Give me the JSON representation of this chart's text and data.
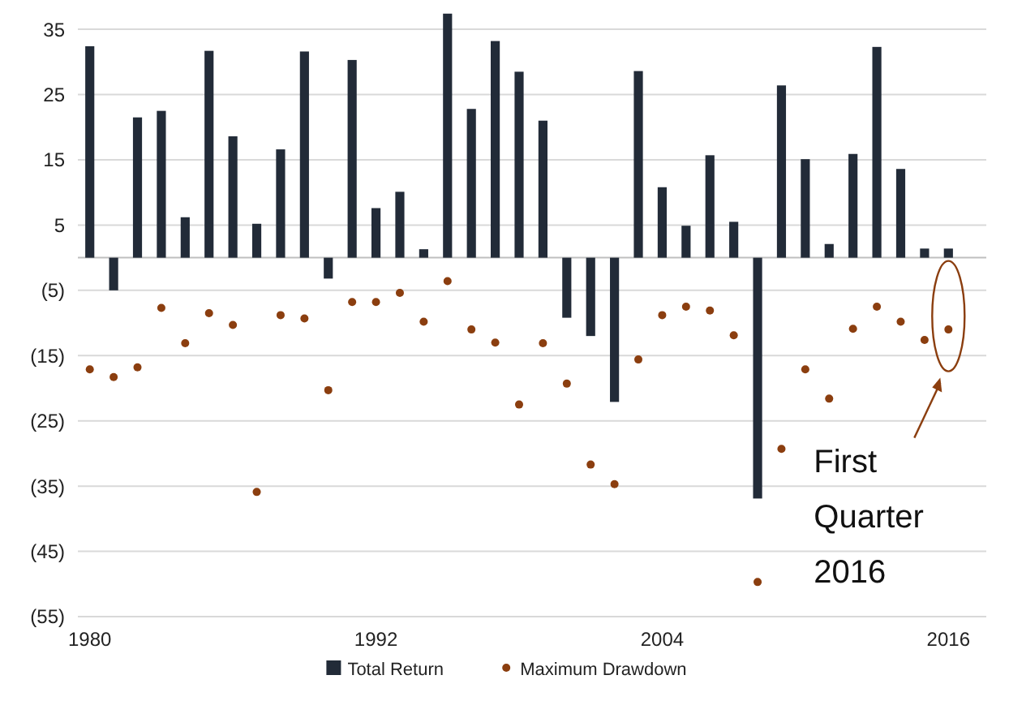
{
  "chart_data": {
    "type": "bar",
    "x": [
      1980,
      1981,
      1982,
      1983,
      1984,
      1985,
      1986,
      1987,
      1988,
      1989,
      1990,
      1991,
      1992,
      1993,
      1994,
      1995,
      1996,
      1997,
      1998,
      1999,
      2000,
      2001,
      2002,
      2003,
      2004,
      2005,
      2006,
      2007,
      2008,
      2009,
      2010,
      2011,
      2012,
      2013,
      2014,
      2015,
      2016
    ],
    "series": [
      {
        "name": "Total Return",
        "color": "#222b38",
        "values": [
          32.4,
          -5.0,
          21.5,
          22.5,
          6.2,
          31.7,
          18.6,
          5.2,
          16.6,
          31.6,
          -3.2,
          30.3,
          7.6,
          10.1,
          1.3,
          37.4,
          22.8,
          33.2,
          28.5,
          21.0,
          -9.2,
          -12.0,
          -22.1,
          28.6,
          10.8,
          4.9,
          15.7,
          5.5,
          -36.9,
          26.4,
          15.1,
          2.1,
          15.9,
          32.3,
          13.6,
          1.4,
          1.4
        ]
      },
      {
        "name": "Maximum Drawdown",
        "type": "scatter",
        "color": "#8b3e0f",
        "values": [
          -17.1,
          -18.3,
          -16.8,
          -7.7,
          -13.1,
          -8.5,
          -10.3,
          -35.9,
          -8.8,
          -9.3,
          -20.3,
          -6.8,
          -6.8,
          -5.4,
          -9.8,
          -3.6,
          -11.0,
          -13.0,
          -22.5,
          -13.1,
          -19.3,
          -31.7,
          -34.7,
          -15.6,
          -8.8,
          -7.5,
          -8.1,
          -11.9,
          -49.7,
          -29.3,
          -17.1,
          -21.6,
          -10.9,
          -7.5,
          -9.8,
          -12.6,
          -11.0
        ]
      }
    ],
    "xlim": [
      1979.5,
      2016.5
    ],
    "xticks": [
      1980,
      1992,
      2004,
      2016
    ],
    "ylim": [
      -55,
      37.5
    ],
    "yticks": [
      {
        "value": -55,
        "label": "(55)"
      },
      {
        "value": -45,
        "label": "(45)"
      },
      {
        "value": -35,
        "label": "(35)"
      },
      {
        "value": -25,
        "label": "(25)"
      },
      {
        "value": -15,
        "label": "(15)"
      },
      {
        "value": -5,
        "label": "(5)"
      },
      5,
      15,
      25,
      35
    ],
    "grid": "y",
    "legend": "bottom",
    "marker": "circle",
    "annotations": [
      "First Quarter 2016"
    ]
  }
}
